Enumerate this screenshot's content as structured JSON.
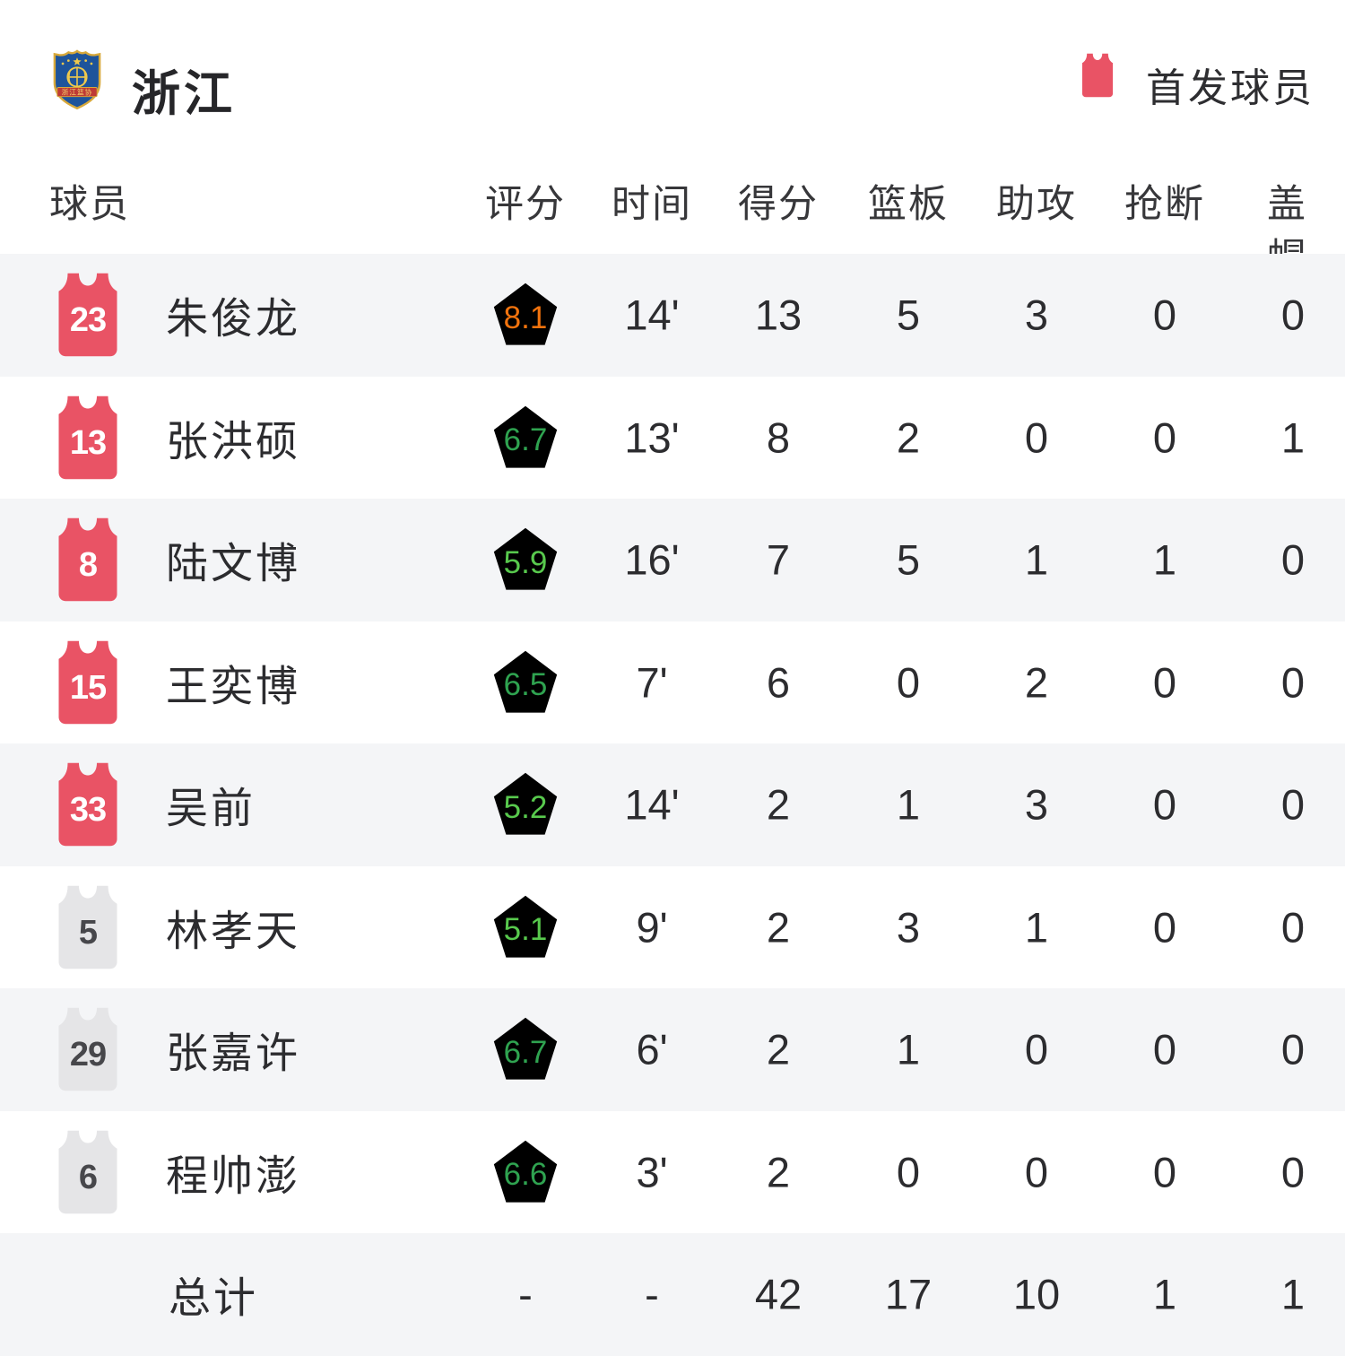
{
  "team": {
    "name": "浙江",
    "logo_banner_text": "浙江篮协"
  },
  "legend": {
    "label": "首发球员",
    "starter_color": "#E95365"
  },
  "columns": {
    "player": "球员",
    "rating": "评分",
    "time": "时间",
    "points": "得分",
    "rebounds": "篮板",
    "assists": "助攻",
    "steals": "抢断",
    "blocks": "盖帽"
  },
  "players": [
    {
      "number": "23",
      "name": "朱俊龙",
      "jersey": "red",
      "rating": "8.1",
      "rating_tier": "orange",
      "time": "14'",
      "points": "13",
      "rebounds": "5",
      "assists": "3",
      "steals": "0",
      "blocks": "0"
    },
    {
      "number": "13",
      "name": "张洪硕",
      "jersey": "red",
      "rating": "6.7",
      "rating_tier": "green",
      "time": "13'",
      "points": "8",
      "rebounds": "2",
      "assists": "0",
      "steals": "0",
      "blocks": "1"
    },
    {
      "number": "8",
      "name": "陆文博",
      "jersey": "red",
      "rating": "5.9",
      "rating_tier": "light-green",
      "time": "16'",
      "points": "7",
      "rebounds": "5",
      "assists": "1",
      "steals": "1",
      "blocks": "0"
    },
    {
      "number": "15",
      "name": "王奕博",
      "jersey": "red",
      "rating": "6.5",
      "rating_tier": "green",
      "time": "7'",
      "points": "6",
      "rebounds": "0",
      "assists": "2",
      "steals": "0",
      "blocks": "0"
    },
    {
      "number": "33",
      "name": "吴前",
      "jersey": "red",
      "rating": "5.2",
      "rating_tier": "light-green",
      "time": "14'",
      "points": "2",
      "rebounds": "1",
      "assists": "3",
      "steals": "0",
      "blocks": "0"
    },
    {
      "number": "5",
      "name": "林孝天",
      "jersey": "gray",
      "rating": "5.1",
      "rating_tier": "light-green",
      "time": "9'",
      "points": "2",
      "rebounds": "3",
      "assists": "1",
      "steals": "0",
      "blocks": "0"
    },
    {
      "number": "29",
      "name": "张嘉许",
      "jersey": "gray",
      "rating": "6.7",
      "rating_tier": "green",
      "time": "6'",
      "points": "2",
      "rebounds": "1",
      "assists": "0",
      "steals": "0",
      "blocks": "0"
    },
    {
      "number": "6",
      "name": "程帅澎",
      "jersey": "gray",
      "rating": "6.6",
      "rating_tier": "green",
      "time": "3'",
      "points": "2",
      "rebounds": "0",
      "assists": "0",
      "steals": "0",
      "blocks": "0"
    }
  ],
  "total": {
    "label": "总计",
    "rating": "-",
    "time": "-",
    "points": "42",
    "rebounds": "17",
    "assists": "10",
    "steals": "1",
    "blocks": "1"
  },
  "colors": {
    "row_stripe": "#F4F5F7",
    "starter_jersey": "#E95365",
    "bench_jersey": "#E5E5E7",
    "rating_orange": "#F2730D",
    "rating_green": "#2FA350",
    "rating_light_green": "#58C94D"
  }
}
